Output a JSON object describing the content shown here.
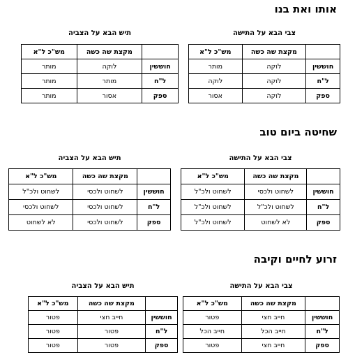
{
  "sections": [
    {
      "title": "אותו ואת בנו",
      "tables": [
        {
          "caption": "צבי הבא על התישה",
          "header": [
            "",
            "מקצת שה כשה",
            "מש\"כ ל\"א"
          ],
          "rows": [
            [
              "חוששין",
              "לוקה",
              "מותר"
            ],
            [
              "ל\"ח",
              "לוקה",
              "לוקה"
            ],
            [
              "ספק",
              "לוקה",
              "אסור"
            ]
          ]
        },
        {
          "caption": "תיש הבא על הצביה",
          "header": [
            "",
            "מקצת שה כשה",
            "מש\"כ ל\"א"
          ],
          "rows": [
            [
              "חוששין",
              "לוקה",
              "מותר"
            ],
            [
              "ל\"ח",
              "מותר",
              "מותר"
            ],
            [
              "ספק",
              "אסור",
              "מותר"
            ]
          ]
        }
      ]
    },
    {
      "title": "שחיטה ביום טוב",
      "tables": [
        {
          "caption": "צבי הבא על התישה",
          "header": [
            "",
            "מקצת שה כשה",
            "מש\"כ ל\"א"
          ],
          "rows": [
            [
              "חוששין",
              "לשחוט ולכסי",
              "לשחוט ולכ\"ל"
            ],
            [
              "ל\"ח",
              "לשחוט ולכ\"ל",
              "לשחוט ולכ\"ל"
            ],
            [
              "ספק",
              "לא לשחוט",
              "לשחוט ולכ\"ל"
            ]
          ]
        },
        {
          "caption": "תיש הבא על הצביה",
          "header": [
            "",
            "מקצת שה כשה",
            "מש\"כ ל\"א"
          ],
          "rows": [
            [
              "חוששין",
              "לשחוט ולכסי",
              "לשחוט ולכ\"ל"
            ],
            [
              "ל\"ח",
              "לשחוט ולכסי",
              "לשחוט ולכסי"
            ],
            [
              "ספק",
              "לשחוט ולכסי",
              "לא לשחוט"
            ]
          ]
        }
      ]
    },
    {
      "title": "זרוע לחיים וקיבה",
      "tables": [
        {
          "caption": "צבי הבא על התישה",
          "header": [
            "",
            "מקצת שה כשה",
            "מש\"כ ל\"א"
          ],
          "rows": [
            [
              "חוששין",
              "חייב חצי",
              "פטור"
            ],
            [
              "ל\"ח",
              "חייב הכל",
              "חייב הכל"
            ],
            [
              "ספק",
              "חייב חצי",
              "פטור"
            ]
          ]
        },
        {
          "caption": "תיש הבא על הצביה",
          "header": [
            "",
            "מקצת שה כשה",
            "מש\"כ ל\"א"
          ],
          "rows": [
            [
              "חוששין",
              "חייב חצי",
              "פטור"
            ],
            [
              "ל\"ח",
              "פטור",
              "פטור"
            ],
            [
              "ספק",
              "פטור",
              "פטור"
            ]
          ]
        }
      ]
    }
  ]
}
